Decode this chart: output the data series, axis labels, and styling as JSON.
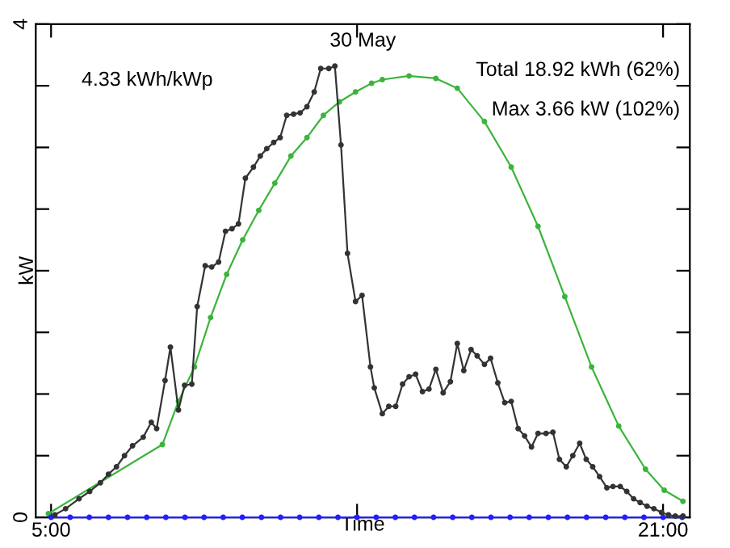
{
  "chart_data": {
    "type": "line",
    "title": "30 May",
    "xlabel": "Time",
    "ylabel": "kW",
    "annotations": [
      "4.33 kWh/kWp",
      "Total 18.92 kWh (62%)",
      "Max 3.66 kW (102%)"
    ],
    "xlim": [
      4.6,
      21.7
    ],
    "ylim": [
      0,
      4
    ],
    "xticks": [
      {
        "value": 5,
        "label": "5:00"
      },
      {
        "value": 13,
        "label": null
      },
      {
        "value": 21,
        "label": "21:00"
      }
    ],
    "yticks": [
      0,
      {
        "value": 0.5,
        "label": null
      },
      {
        "value": 1,
        "label": null
      },
      {
        "value": 1.5,
        "label": null
      },
      {
        "value": 2,
        "label": null
      },
      {
        "value": 2.5,
        "label": null
      },
      {
        "value": 3,
        "label": null
      },
      {
        "value": 3.5,
        "label": null
      },
      4
    ],
    "grid": false,
    "legend": false,
    "marker": "circle",
    "line_style": "solid",
    "series": [
      {
        "color": "#3cb43c",
        "x": [
          4.93,
          7.91,
          8.33,
          8.75,
          9.17,
          9.59,
          10.01,
          10.43,
          10.85,
          11.27,
          11.69,
          12.12,
          12.54,
          12.96,
          13.38,
          13.66,
          14.36,
          15.06,
          15.62,
          16.33,
          17.03,
          17.73,
          18.43,
          19.13,
          19.84,
          20.54,
          21.03,
          21.52
        ],
        "values": [
          0.03,
          0.59,
          0.94,
          1.22,
          1.62,
          1.97,
          2.25,
          2.49,
          2.71,
          2.93,
          3.08,
          3.26,
          3.37,
          3.45,
          3.52,
          3.55,
          3.58,
          3.56,
          3.48,
          3.21,
          2.84,
          2.36,
          1.79,
          1.22,
          0.74,
          0.39,
          0.22,
          0.13
        ]
      },
      {
        "color": "#2020ff",
        "x": [
          5.0,
          5.5,
          6.0,
          6.5,
          7.0,
          7.5,
          8.0,
          8.5,
          9.0,
          9.5,
          10.0,
          10.5,
          11.0,
          11.5,
          12.0,
          12.5,
          13.0,
          13.5,
          14.0,
          14.5,
          15.0,
          15.5,
          16.0,
          16.5,
          17.0,
          17.5,
          18.0,
          18.5,
          19.0,
          19.5,
          20.0,
          20.5,
          21.0,
          21.5
        ],
        "values": [
          0,
          0,
          0,
          0,
          0,
          0,
          0,
          0,
          0,
          0,
          0,
          0,
          0,
          0,
          0,
          0,
          0,
          0,
          0,
          0,
          0,
          0,
          0,
          0,
          0,
          0,
          0,
          0,
          0,
          0,
          0,
          0,
          0,
          0
        ]
      },
      {
        "color": "#333333",
        "x": [
          5.1,
          5.38,
          5.73,
          6.01,
          6.29,
          6.5,
          6.71,
          6.92,
          7.13,
          7.41,
          7.62,
          7.76,
          7.98,
          8.12,
          8.33,
          8.49,
          8.68,
          8.82,
          9.03,
          9.2,
          9.38,
          9.56,
          9.73,
          9.9,
          10.08,
          10.29,
          10.47,
          10.64,
          10.82,
          10.99,
          11.16,
          11.34,
          11.51,
          11.69,
          11.88,
          12.05,
          12.26,
          12.42,
          12.58,
          12.75,
          12.96,
          13.13,
          13.35,
          13.45,
          13.66,
          13.83,
          14.01,
          14.19,
          14.36,
          14.53,
          14.71,
          14.88,
          15.06,
          15.25,
          15.44,
          15.62,
          15.79,
          15.98,
          16.14,
          16.33,
          16.49,
          16.68,
          16.86,
          17.03,
          17.21,
          17.38,
          17.56,
          17.73,
          17.94,
          18.12,
          18.29,
          18.47,
          18.64,
          18.82,
          18.99,
          19.16,
          19.34,
          19.53,
          19.69,
          19.88,
          20.05,
          20.23,
          20.4,
          20.58,
          20.76,
          20.96,
          21.14,
          21.32,
          21.52
        ],
        "values": [
          0.02,
          0.07,
          0.15,
          0.21,
          0.28,
          0.35,
          0.41,
          0.5,
          0.58,
          0.65,
          0.77,
          0.72,
          1.11,
          1.38,
          0.87,
          1.07,
          1.08,
          1.71,
          2.04,
          2.03,
          2.07,
          2.32,
          2.34,
          2.38,
          2.75,
          2.84,
          2.93,
          2.99,
          3.04,
          3.08,
          3.26,
          3.27,
          3.28,
          3.33,
          3.45,
          3.64,
          3.64,
          3.66,
          3.02,
          2.14,
          1.75,
          1.8,
          1.22,
          1.05,
          0.84,
          0.9,
          0.9,
          1.08,
          1.14,
          1.16,
          1.02,
          1.04,
          1.2,
          1.01,
          1.1,
          1.41,
          1.19,
          1.36,
          1.31,
          1.24,
          1.29,
          1.09,
          0.93,
          0.94,
          0.72,
          0.66,
          0.57,
          0.68,
          0.68,
          0.69,
          0.47,
          0.41,
          0.5,
          0.6,
          0.47,
          0.41,
          0.33,
          0.24,
          0.25,
          0.25,
          0.21,
          0.15,
          0.12,
          0.09,
          0.07,
          0.04,
          0.02,
          0.01,
          0.01
        ]
      }
    ]
  }
}
